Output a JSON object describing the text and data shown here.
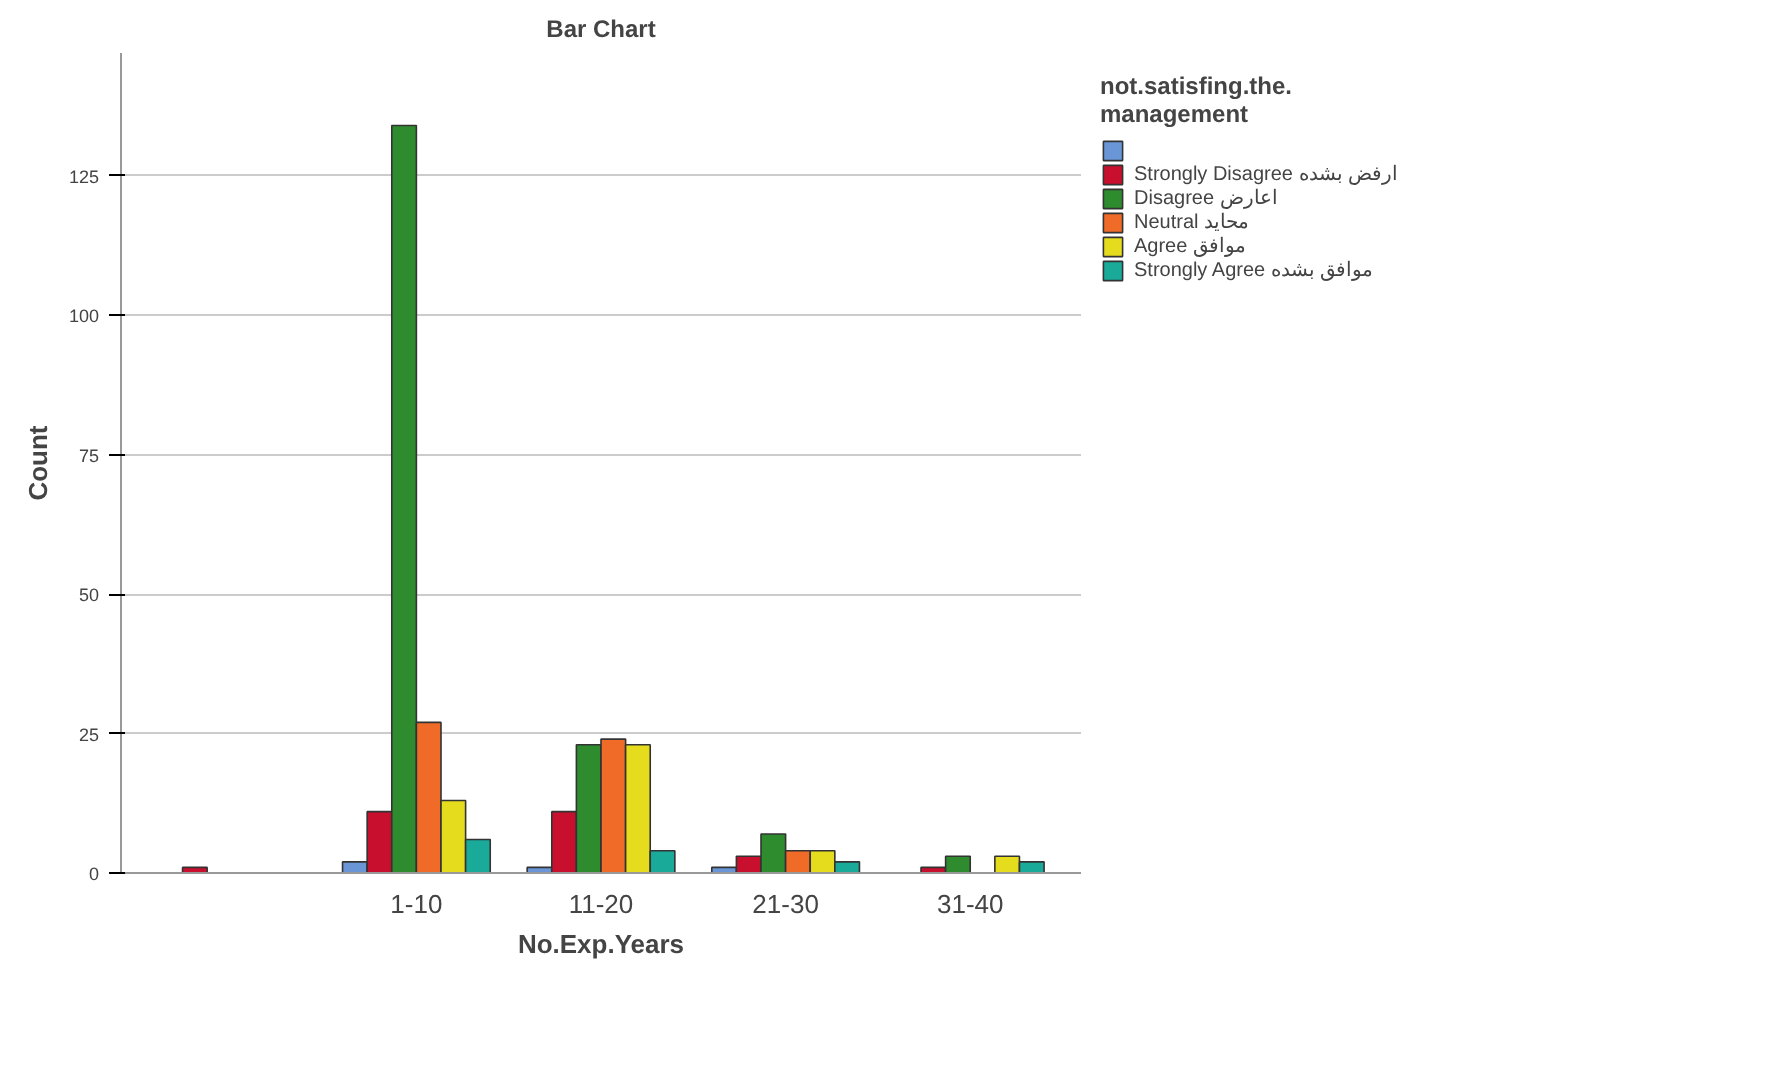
{
  "chart_data": {
    "type": "bar",
    "title": "Bar Chart",
    "xlabel": "No.Exp.Years",
    "ylabel": "Count",
    "legend_title": "not.satisfing.the. management",
    "categories": [
      null,
      "1-10",
      "11-20",
      "21-30",
      "31-40"
    ],
    "series": [
      {
        "color": "#6a96d8",
        "values": [
          null,
          2,
          1,
          1,
          null
        ]
      },
      {
        "name": "Strongly Disagree ارفض بشده",
        "color": "#c8102e",
        "values": [
          1,
          11,
          11,
          3,
          1
        ]
      },
      {
        "name": "Disagree اعارض",
        "color": "#2e8b2e",
        "values": [
          null,
          134,
          23,
          7,
          3
        ]
      },
      {
        "name": "Neutral محايد",
        "color": "#f06a28",
        "values": [
          null,
          27,
          24,
          4,
          null
        ]
      },
      {
        "name": "Agree موافق",
        "color": "#e6dc1e",
        "values": [
          null,
          13,
          23,
          4,
          3
        ]
      },
      {
        "name": "Strongly Agree موافق بشده",
        "color": "#1aaa9a",
        "values": [
          null,
          6,
          4,
          2,
          2
        ]
      }
    ],
    "ylim": [
      0,
      147
    ],
    "yticks": [
      0,
      25,
      50,
      75,
      100,
      125
    ],
    "grid": "y",
    "legend": "right"
  }
}
